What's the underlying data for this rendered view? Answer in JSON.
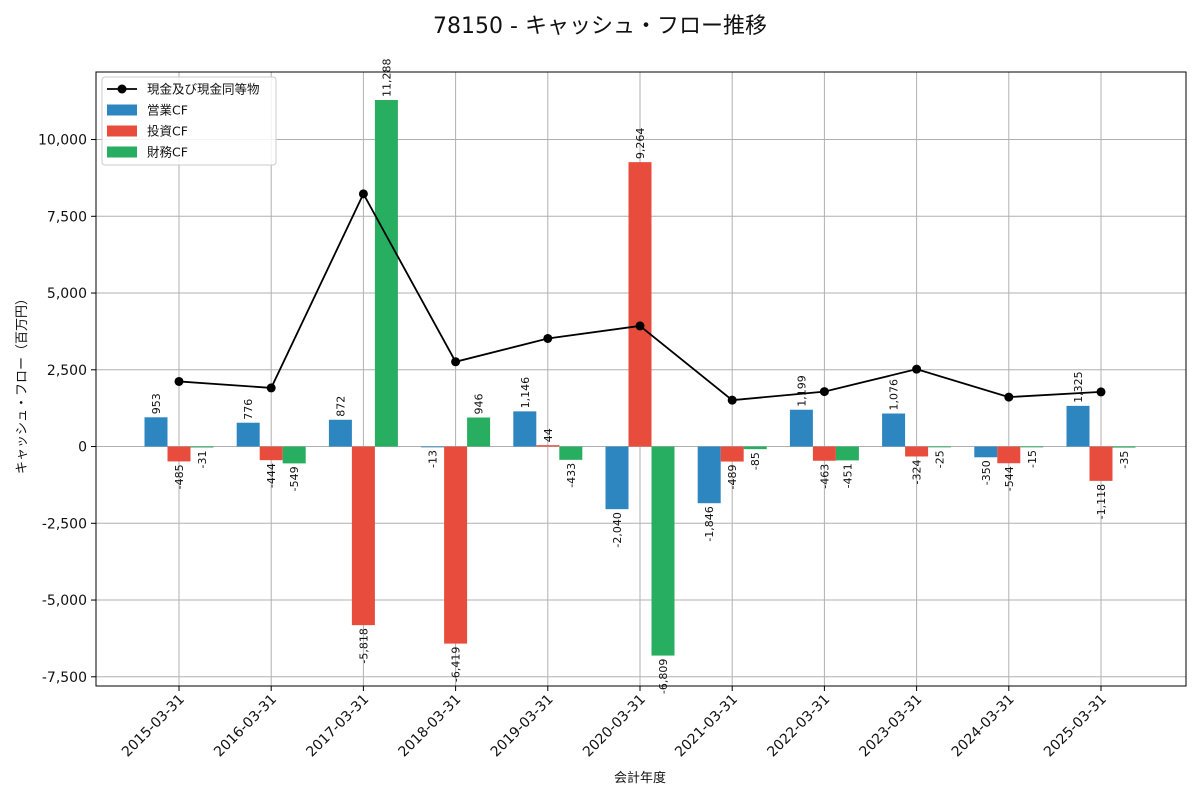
{
  "chart_data": {
    "type": "bar",
    "title": "78150 - キャッシュ・フロー推移",
    "xlabel": "会計年度",
    "ylabel": "キャッシュ・フロー（百万円）",
    "categories": [
      "2015-03-31",
      "2016-03-31",
      "2017-03-31",
      "2018-03-31",
      "2019-03-31",
      "2020-03-31",
      "2021-03-31",
      "2022-03-31",
      "2023-03-31",
      "2024-03-31",
      "2025-03-31"
    ],
    "series": [
      {
        "name": "営業CF",
        "kind": "bar",
        "color": "#2E86C1",
        "values": [
          953,
          776,
          872,
          -13,
          1146,
          -2040,
          -1846,
          1199,
          1076,
          -350,
          1325
        ],
        "labels": [
          "953",
          "776",
          "872",
          "-13",
          "1,146",
          "-2,040",
          "-1,846",
          "1,199",
          "1,076",
          "-350",
          "1,325"
        ]
      },
      {
        "name": "投資CF",
        "kind": "bar",
        "color": "#E74C3C",
        "values": [
          -485,
          -444,
          -5818,
          -6419,
          44,
          9264,
          -489,
          -463,
          -324,
          -544,
          -1118
        ],
        "labels": [
          "-485",
          "-444",
          "-5,818",
          "-6,419",
          "44",
          "9,264",
          "-489",
          "-463",
          "-324",
          "-544",
          "-1,118"
        ]
      },
      {
        "name": "財務CF",
        "kind": "bar",
        "color": "#27AE60",
        "values": [
          -31,
          -549,
          11288,
          946,
          -433,
          -6809,
          -85,
          -451,
          -25,
          -15,
          -35
        ],
        "labels": [
          "-31",
          "-549",
          "11,288",
          "946",
          "-433",
          "-6,809",
          "-85",
          "-451",
          "-25",
          "-15",
          "-35"
        ]
      },
      {
        "name": "現金及び現金同等物",
        "kind": "line",
        "color": "#000000",
        "values": [
          2120,
          1910,
          8230,
          2760,
          3520,
          3930,
          1510,
          1790,
          2520,
          1610,
          1780
        ]
      }
    ],
    "ylim": [
      -7800,
      12200
    ],
    "yticks": [
      -7500,
      -5000,
      -2500,
      0,
      2500,
      5000,
      7500,
      10000
    ],
    "ytick_labels": [
      "-7,500",
      "-5,000",
      "-2,500",
      "0",
      "2,500",
      "5,000",
      "7,500",
      "10,000"
    ],
    "grid": true,
    "legend": "upper-left"
  }
}
